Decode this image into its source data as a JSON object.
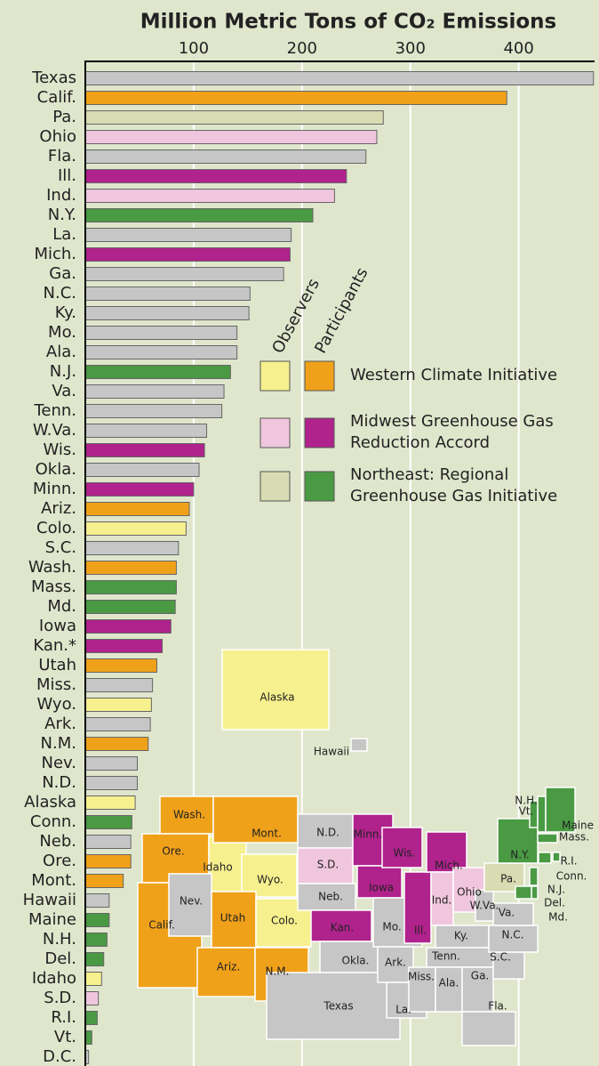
{
  "chart_data": {
    "type": "bar",
    "orientation": "horizontal",
    "title": "Million Metric Tons of CO₂ Emissions",
    "categories": [
      "Texas",
      "Calif.",
      "Pa.",
      "Ohio",
      "Fla.",
      "Ill.",
      "Ind.",
      "N.Y.",
      "La.",
      "Mich.",
      "Ga.",
      "N.C.",
      "Ky.",
      "Mo.",
      "Ala.",
      "N.J.",
      "Va.",
      "Tenn.",
      "W.Va.",
      "Wis.",
      "Okla.",
      "Minn.",
      "Ariz.",
      "Colo.",
      "S.C.",
      "Wash.",
      "Mass.",
      "Md.",
      "Iowa",
      "Kan.*",
      "Utah",
      "Miss.",
      "Wyo.",
      "Ark.",
      "N.M.",
      "Nev.",
      "N.D.",
      "Alaska",
      "Conn.",
      "Neb.",
      "Ore.",
      "Mont.",
      "Hawaii",
      "Maine",
      "N.H.",
      "Del.",
      "Idaho",
      "S.D.",
      "R.I.",
      "Vt.",
      "D.C."
    ],
    "values": [
      469,
      389,
      275,
      269,
      259,
      241,
      230,
      210,
      190,
      189,
      183,
      152,
      151,
      140,
      140,
      134,
      128,
      126,
      112,
      110,
      105,
      100,
      96,
      93,
      86,
      84,
      84,
      83,
      79,
      71,
      66,
      62,
      61,
      60,
      58,
      48,
      48,
      46,
      43,
      42,
      42,
      35,
      22,
      22,
      20,
      17,
      15,
      12,
      11,
      6,
      3
    ],
    "colors": [
      "#c6c6c6",
      "#f0a11a",
      "#d9dcb2",
      "#f0c6de",
      "#c6c6c6",
      "#b0228c",
      "#f0c6de",
      "#4a9a44",
      "#c6c6c6",
      "#b0228c",
      "#c6c6c6",
      "#c6c6c6",
      "#c6c6c6",
      "#c6c6c6",
      "#c6c6c6",
      "#4a9a44",
      "#c6c6c6",
      "#c6c6c6",
      "#c6c6c6",
      "#b0228c",
      "#c6c6c6",
      "#b0228c",
      "#f0a11a",
      "#f7f08e",
      "#c6c6c6",
      "#f0a11a",
      "#4a9a44",
      "#4a9a44",
      "#b0228c",
      "#b0228c",
      "#f0a11a",
      "#c6c6c6",
      "#f7f08e",
      "#c6c6c6",
      "#f0a11a",
      "#c6c6c6",
      "#c6c6c6",
      "#f7f08e",
      "#4a9a44",
      "#c6c6c6",
      "#f0a11a",
      "#f0a11a",
      "#c6c6c6",
      "#4a9a44",
      "#4a9a44",
      "#4a9a44",
      "#f7f08e",
      "#f0c6de",
      "#4a9a44",
      "#4a9a44",
      "#c6c6c6"
    ],
    "xlim": [
      0,
      470
    ],
    "xticks": [
      100,
      200,
      300,
      400
    ],
    "grid": true,
    "legend": {
      "columns": [
        "Observers",
        "Participants"
      ],
      "rows": [
        {
          "label": [
            "Western Climate Initiative"
          ],
          "observer_color": "#f7f08e",
          "participant_color": "#f0a11a"
        },
        {
          "label": [
            "Midwest Greenhouse Gas",
            "Reduction Accord"
          ],
          "observer_color": "#f0c6de",
          "participant_color": "#b0228c"
        },
        {
          "label": [
            "Northeast: Regional",
            "Greenhouse Gas Initiative"
          ],
          "observer_color": "#d9dcb2",
          "participant_color": "#4a9a44"
        }
      ]
    }
  },
  "map": {
    "states": [
      {
        "name": "Alaska",
        "color": "#f7f08e"
      },
      {
        "name": "Hawaii",
        "color": "#c6c6c6"
      },
      {
        "name": "Wash.",
        "color": "#f0a11a"
      },
      {
        "name": "Ore.",
        "color": "#f0a11a"
      },
      {
        "name": "Calif.",
        "color": "#f0a11a"
      },
      {
        "name": "Idaho",
        "color": "#f7f08e"
      },
      {
        "name": "Nev.",
        "color": "#c6c6c6"
      },
      {
        "name": "Mont.",
        "color": "#f0a11a"
      },
      {
        "name": "Wyo.",
        "color": "#f7f08e"
      },
      {
        "name": "Utah",
        "color": "#f0a11a"
      },
      {
        "name": "Colo.",
        "color": "#f7f08e"
      },
      {
        "name": "Ariz.",
        "color": "#f0a11a"
      },
      {
        "name": "N.M.",
        "color": "#f0a11a"
      },
      {
        "name": "N.D.",
        "color": "#c6c6c6"
      },
      {
        "name": "S.D.",
        "color": "#f0c6de"
      },
      {
        "name": "Neb.",
        "color": "#c6c6c6"
      },
      {
        "name": "Kan.",
        "color": "#b0228c"
      },
      {
        "name": "Okla.",
        "color": "#c6c6c6"
      },
      {
        "name": "Texas",
        "color": "#c6c6c6"
      },
      {
        "name": "Minn.",
        "color": "#b0228c"
      },
      {
        "name": "Iowa",
        "color": "#b0228c"
      },
      {
        "name": "Mo.",
        "color": "#c6c6c6"
      },
      {
        "name": "Ark.",
        "color": "#c6c6c6"
      },
      {
        "name": "La.",
        "color": "#c6c6c6"
      },
      {
        "name": "Wis.",
        "color": "#b0228c"
      },
      {
        "name": "Ill.",
        "color": "#b0228c"
      },
      {
        "name": "Mich.",
        "color": "#b0228c"
      },
      {
        "name": "Ind.",
        "color": "#f0c6de"
      },
      {
        "name": "Ohio",
        "color": "#f0c6de"
      },
      {
        "name": "Ky.",
        "color": "#c6c6c6"
      },
      {
        "name": "Tenn.",
        "color": "#c6c6c6"
      },
      {
        "name": "Miss.",
        "color": "#c6c6c6"
      },
      {
        "name": "Ala.",
        "color": "#c6c6c6"
      },
      {
        "name": "Ga.",
        "color": "#c6c6c6"
      },
      {
        "name": "Fla.",
        "color": "#c6c6c6"
      },
      {
        "name": "S.C.",
        "color": "#c6c6c6"
      },
      {
        "name": "N.C.",
        "color": "#c6c6c6"
      },
      {
        "name": "Va.",
        "color": "#c6c6c6"
      },
      {
        "name": "W.Va.",
        "color": "#c6c6c6"
      },
      {
        "name": "Pa.",
        "color": "#d9dcb2"
      },
      {
        "name": "N.Y.",
        "color": "#4a9a44"
      },
      {
        "name": "Vt.",
        "color": "#4a9a44"
      },
      {
        "name": "N.H.",
        "color": "#4a9a44"
      },
      {
        "name": "Maine",
        "color": "#4a9a44"
      },
      {
        "name": "Mass.",
        "color": "#4a9a44"
      },
      {
        "name": "R.I.",
        "color": "#4a9a44"
      },
      {
        "name": "Conn.",
        "color": "#4a9a44"
      },
      {
        "name": "N.J.",
        "color": "#4a9a44"
      },
      {
        "name": "Del.",
        "color": "#4a9a44"
      },
      {
        "name": "Md.",
        "color": "#4a9a44"
      }
    ]
  }
}
